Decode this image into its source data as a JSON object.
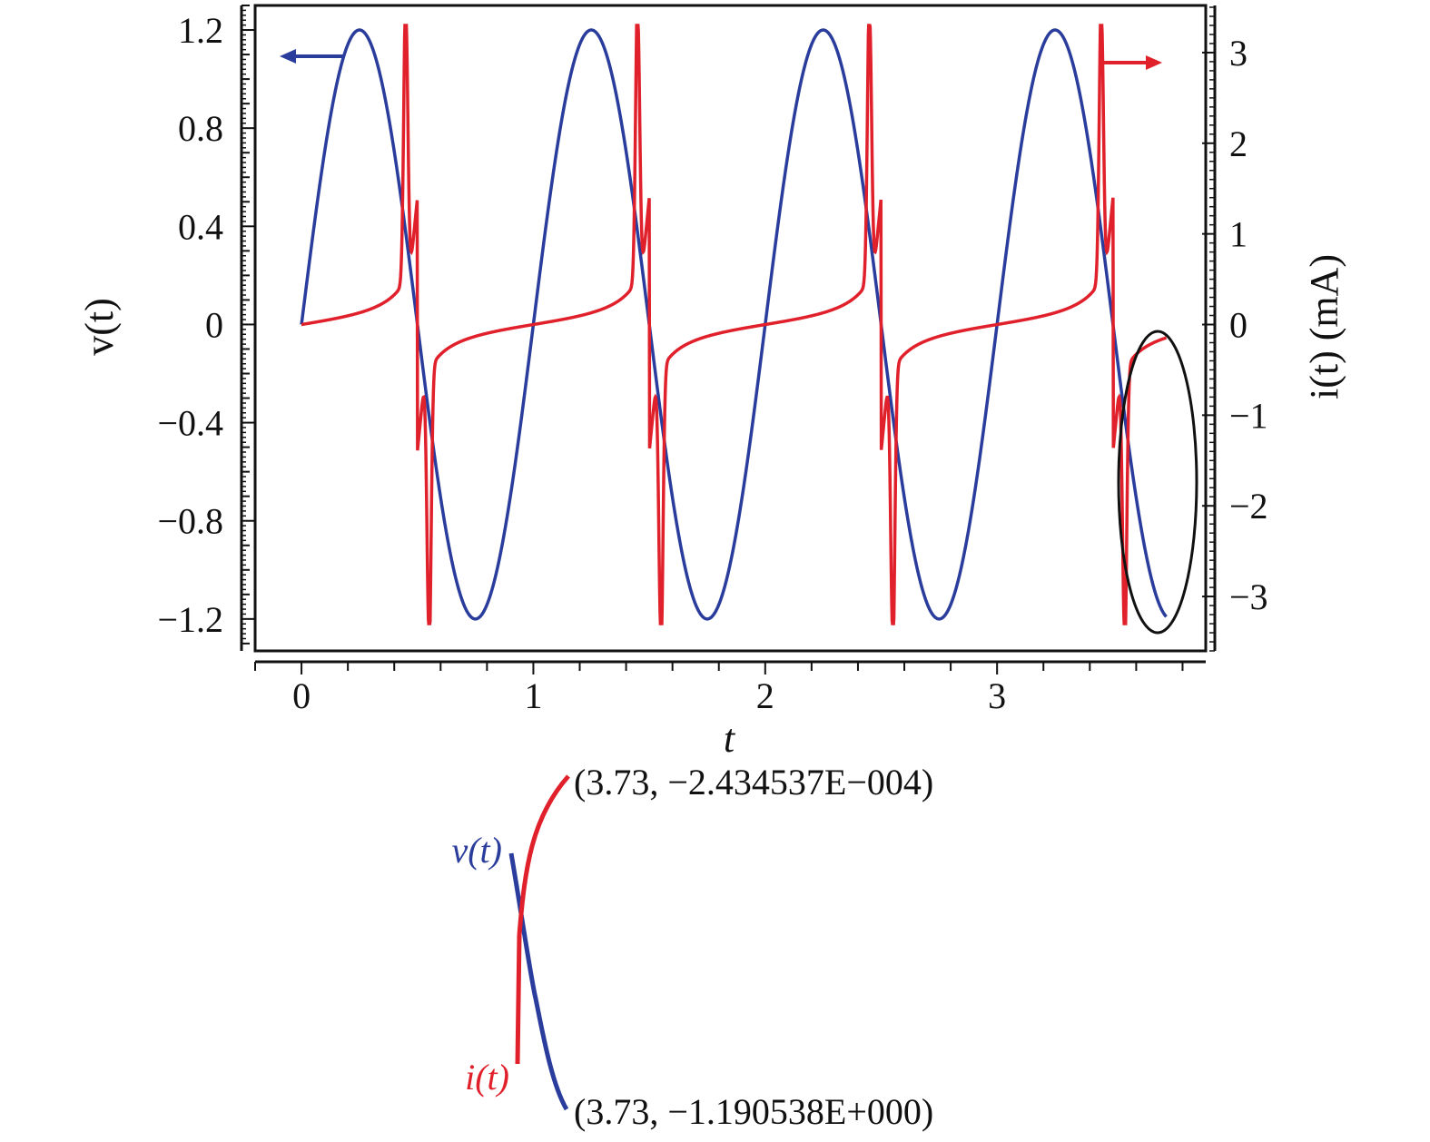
{
  "chart_data": {
    "type": "line",
    "xlabel": "t",
    "ylabel_left": "v(t)",
    "ylabel_right": "i(t) (mA)",
    "xlim": [
      -0.2,
      3.9
    ],
    "ylim_left": [
      -1.33,
      1.3
    ],
    "ylim_right": [
      -3.6,
      3.52
    ],
    "x_ticks": [
      0,
      1,
      2,
      3
    ],
    "x_tick_labels": [
      "0",
      "1",
      "2",
      "3"
    ],
    "y_left_ticks": [
      1.2,
      0.8,
      0.4,
      0,
      -0.4,
      -0.8,
      -1.2
    ],
    "y_left_tick_labels": [
      "1.2",
      "0.8",
      "0.4",
      "0",
      "−0.4",
      "−0.8",
      "−1.2"
    ],
    "y_right_ticks": [
      3,
      2,
      1,
      0,
      -1,
      -2,
      -3
    ],
    "y_right_tick_labels": [
      "3",
      "2",
      "1",
      "0",
      "−1",
      "−2",
      "−3"
    ],
    "grid": false,
    "series": [
      {
        "id": "v",
        "axis": "left",
        "color": "#2b3d9c",
        "formula": "v(t) = 1.2 sin(2πt)",
        "t_range": [
          0,
          3.73
        ]
      },
      {
        "id": "i",
        "axis": "right",
        "color": "#e0202a",
        "formula": "narrow pulses near t = k + 0.5; i(3.73) ≈ −0.24 mA",
        "t_range": [
          0,
          3.73
        ]
      }
    ],
    "annotations": {
      "inset_point_i": "(3.73, −2.434537E−004)",
      "inset_point_v": "(3.73, −1.190538E+000)",
      "inset_label_v": "v(t)",
      "inset_label_i": "i(t)",
      "arrow_left_axis": "points to left axis",
      "arrow_right_axis": "points to right axis",
      "highlight": "ellipse around curve ends near t = 3.73"
    }
  }
}
